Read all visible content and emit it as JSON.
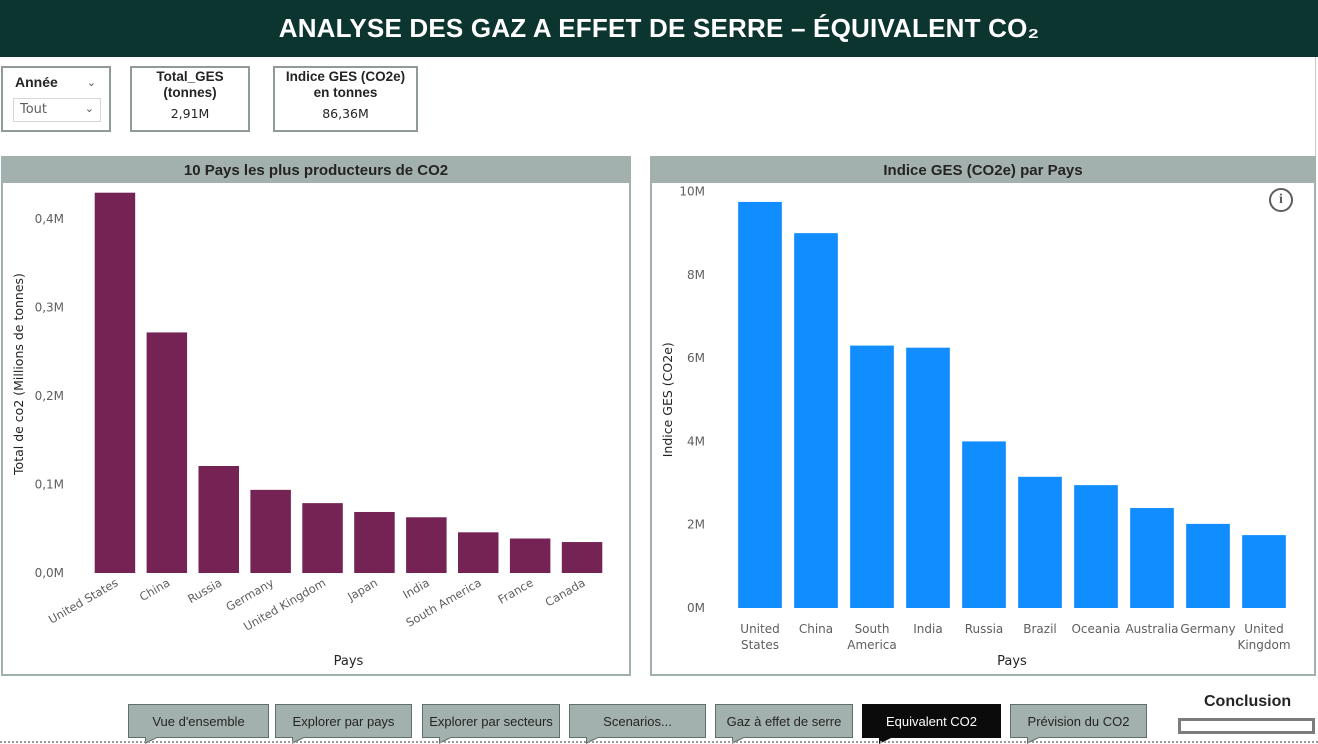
{
  "header": {
    "title": "ANALYSE DES GAZ A EFFET DE SERRE – ÉQUIVALENT CO₂"
  },
  "slicer": {
    "title": "Année",
    "value": "Tout"
  },
  "kpis": [
    {
      "title": "Total_GES (tonnes)",
      "value": "2,91M"
    },
    {
      "title": "Indice GES (CO2e) en tonnes",
      "value": "86,36M"
    }
  ],
  "chart_data": [
    {
      "type": "bar",
      "title": "10 Pays les plus producteurs de CO2",
      "xlabel": "Pays",
      "ylabel": "Total de co2 (Millions de tonnes)",
      "categories": [
        "United States",
        "China",
        "Russia",
        "Germany",
        "United Kingdom",
        "Japan",
        "India",
        "South America",
        "France",
        "Canada"
      ],
      "values": [
        0.43,
        0.272,
        0.121,
        0.094,
        0.079,
        0.069,
        0.063,
        0.046,
        0.039,
        0.035
      ],
      "ylim": [
        0,
        0.45
      ],
      "yticks": [
        0,
        0.1,
        0.2,
        0.3,
        0.4
      ],
      "ytick_labels": [
        "0,0M",
        "0,1M",
        "0,2M",
        "0,3M",
        "0,4M"
      ],
      "color": "#742354",
      "tick_rotation": "diagonal"
    },
    {
      "type": "bar",
      "title": "Indice GES (CO2e) par Pays",
      "xlabel": "Pays",
      "ylabel": "Indice GES (CO2e)",
      "categories": [
        "United States",
        "China",
        "South America",
        "India",
        "Russia",
        "Brazil",
        "Oceania",
        "Australia",
        "Germany",
        "United Kingdom"
      ],
      "values": [
        9.75,
        9.0,
        6.3,
        6.25,
        4.0,
        3.15,
        2.95,
        2.4,
        2.02,
        1.75
      ],
      "ylim": [
        0,
        10
      ],
      "yticks": [
        0,
        2,
        4,
        6,
        8,
        10
      ],
      "ytick_labels": [
        "0M",
        "2M",
        "4M",
        "6M",
        "8M",
        "10M"
      ],
      "color": "#118dff",
      "tick_rotation": "wrap"
    }
  ],
  "info_icon": "info-circle-icon",
  "nav": {
    "buttons": [
      {
        "label": "Vue d'ensemble",
        "active": false
      },
      {
        "label": "Explorer par pays",
        "active": false
      },
      {
        "label": "Explorer par secteurs",
        "active": false
      },
      {
        "label": "Scenarios...",
        "active": false
      },
      {
        "label": "Gaz à effet de serre",
        "active": false
      },
      {
        "label": "Equivalent CO2",
        "active": true
      },
      {
        "label": "Prévision du CO2",
        "active": false
      }
    ],
    "conclusion_label": "Conclusion"
  },
  "colors": {
    "header_bg": "#0d3530",
    "panel_header": "#a3b1ae",
    "bar_left": "#742354",
    "bar_right": "#118dff"
  }
}
